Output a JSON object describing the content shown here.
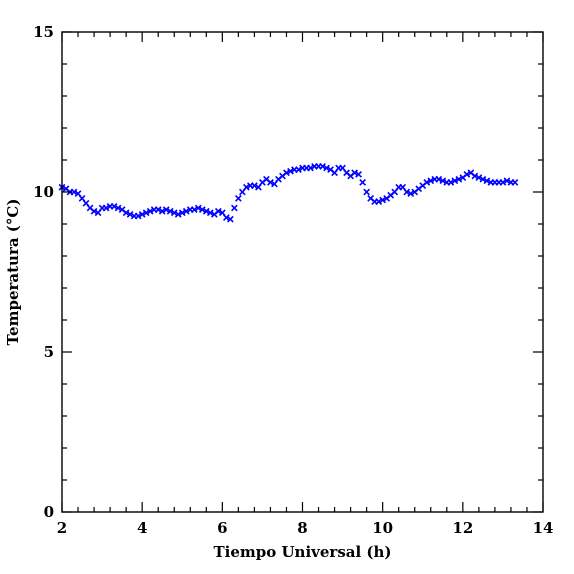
{
  "chart_data": {
    "type": "scatter",
    "title": "",
    "xlabel": "Tiempo Universal (h)",
    "ylabel": "Temperatura (°C)",
    "xlim": [
      2,
      14
    ],
    "ylim": [
      0,
      15
    ],
    "x_major_ticks": [
      2,
      4,
      6,
      8,
      10,
      12,
      14
    ],
    "y_major_ticks": [
      0,
      5,
      10,
      15
    ],
    "x_minor_step": 0.4,
    "y_minor_step": 1,
    "grid": false,
    "marker": "x",
    "color": "#0000ff",
    "series": [
      {
        "name": "",
        "points": [
          [
            2.0,
            10.15
          ],
          [
            2.1,
            10.1
          ],
          [
            2.2,
            10.0
          ],
          [
            2.3,
            10.0
          ],
          [
            2.4,
            9.95
          ],
          [
            2.5,
            9.8
          ],
          [
            2.6,
            9.65
          ],
          [
            2.7,
            9.5
          ],
          [
            2.8,
            9.4
          ],
          [
            2.9,
            9.35
          ],
          [
            3.0,
            9.5
          ],
          [
            3.1,
            9.5
          ],
          [
            3.2,
            9.55
          ],
          [
            3.3,
            9.55
          ],
          [
            3.4,
            9.5
          ],
          [
            3.5,
            9.45
          ],
          [
            3.6,
            9.35
          ],
          [
            3.7,
            9.3
          ],
          [
            3.8,
            9.25
          ],
          [
            3.9,
            9.25
          ],
          [
            4.0,
            9.3
          ],
          [
            4.1,
            9.35
          ],
          [
            4.2,
            9.4
          ],
          [
            4.3,
            9.45
          ],
          [
            4.4,
            9.45
          ],
          [
            4.5,
            9.4
          ],
          [
            4.6,
            9.45
          ],
          [
            4.7,
            9.4
          ],
          [
            4.8,
            9.35
          ],
          [
            4.9,
            9.3
          ],
          [
            5.0,
            9.35
          ],
          [
            5.1,
            9.4
          ],
          [
            5.2,
            9.45
          ],
          [
            5.3,
            9.45
          ],
          [
            5.4,
            9.5
          ],
          [
            5.5,
            9.45
          ],
          [
            5.6,
            9.4
          ],
          [
            5.7,
            9.35
          ],
          [
            5.8,
            9.3
          ],
          [
            5.9,
            9.4
          ],
          [
            6.0,
            9.35
          ],
          [
            6.1,
            9.2
          ],
          [
            6.2,
            9.15
          ],
          [
            6.3,
            9.5
          ],
          [
            6.4,
            9.8
          ],
          [
            6.5,
            10.0
          ],
          [
            6.6,
            10.15
          ],
          [
            6.7,
            10.2
          ],
          [
            6.8,
            10.2
          ],
          [
            6.9,
            10.15
          ],
          [
            7.0,
            10.3
          ],
          [
            7.1,
            10.4
          ],
          [
            7.2,
            10.3
          ],
          [
            7.3,
            10.25
          ],
          [
            7.4,
            10.4
          ],
          [
            7.5,
            10.5
          ],
          [
            7.6,
            10.6
          ],
          [
            7.7,
            10.65
          ],
          [
            7.8,
            10.7
          ],
          [
            7.9,
            10.7
          ],
          [
            8.0,
            10.75
          ],
          [
            8.1,
            10.75
          ],
          [
            8.2,
            10.75
          ],
          [
            8.3,
            10.8
          ],
          [
            8.4,
            10.8
          ],
          [
            8.5,
            10.8
          ],
          [
            8.6,
            10.75
          ],
          [
            8.7,
            10.7
          ],
          [
            8.8,
            10.6
          ],
          [
            8.9,
            10.75
          ],
          [
            9.0,
            10.75
          ],
          [
            9.1,
            10.6
          ],
          [
            9.2,
            10.5
          ],
          [
            9.3,
            10.6
          ],
          [
            9.4,
            10.55
          ],
          [
            9.5,
            10.3
          ],
          [
            9.6,
            10.0
          ],
          [
            9.7,
            9.8
          ],
          [
            9.8,
            9.7
          ],
          [
            9.9,
            9.7
          ],
          [
            10.0,
            9.75
          ],
          [
            10.1,
            9.8
          ],
          [
            10.2,
            9.9
          ],
          [
            10.3,
            10.0
          ],
          [
            10.4,
            10.15
          ],
          [
            10.5,
            10.15
          ],
          [
            10.6,
            10.0
          ],
          [
            10.7,
            9.95
          ],
          [
            10.8,
            10.0
          ],
          [
            10.9,
            10.1
          ],
          [
            11.0,
            10.2
          ],
          [
            11.1,
            10.3
          ],
          [
            11.2,
            10.35
          ],
          [
            11.3,
            10.4
          ],
          [
            11.4,
            10.4
          ],
          [
            11.5,
            10.35
          ],
          [
            11.6,
            10.3
          ],
          [
            11.7,
            10.3
          ],
          [
            11.8,
            10.35
          ],
          [
            11.9,
            10.4
          ],
          [
            12.0,
            10.45
          ],
          [
            12.1,
            10.55
          ],
          [
            12.2,
            10.6
          ],
          [
            12.3,
            10.5
          ],
          [
            12.4,
            10.45
          ],
          [
            12.5,
            10.4
          ],
          [
            12.6,
            10.35
          ],
          [
            12.7,
            10.3
          ],
          [
            12.8,
            10.3
          ],
          [
            12.9,
            10.3
          ],
          [
            13.0,
            10.3
          ],
          [
            13.1,
            10.35
          ],
          [
            13.2,
            10.3
          ],
          [
            13.3,
            10.3
          ]
        ]
      }
    ]
  }
}
